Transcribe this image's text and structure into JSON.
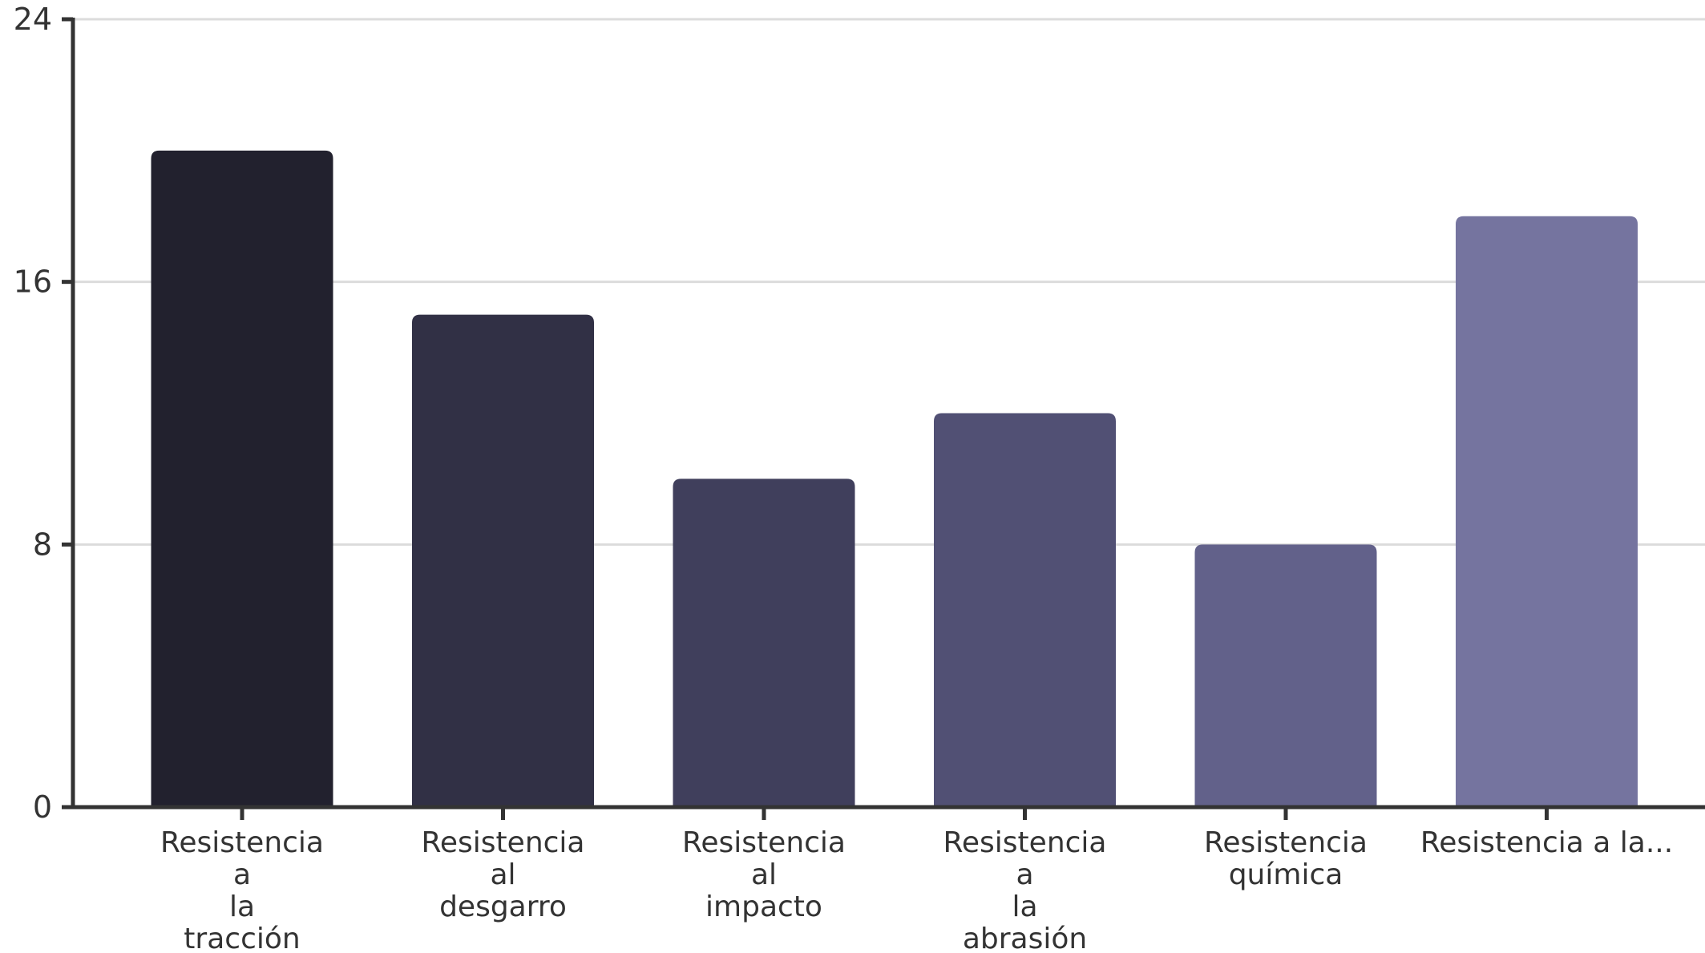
{
  "chart_data": {
    "type": "bar",
    "categories": [
      "Resistencia a la tracción",
      "Resistencia al desgarro",
      "Resistencia al impacto",
      "Resistencia a la abrasión",
      "Resistencia química",
      "Resistencia a la..."
    ],
    "category_label_lines": [
      [
        "Resistencia",
        "a",
        "la",
        "tracción"
      ],
      [
        "Resistencia",
        "al",
        "desgarro"
      ],
      [
        "Resistencia",
        "al",
        "impacto"
      ],
      [
        "Resistencia",
        "a",
        "la",
        "abrasión"
      ],
      [
        "Resistencia",
        "química"
      ],
      [
        "Resistencia a la..."
      ]
    ],
    "values": [
      20,
      15,
      10,
      12,
      8,
      18
    ],
    "colors": [
      "#22212e",
      "#313045",
      "#403f5c",
      "#515074",
      "#62618a",
      "#75749f"
    ],
    "ylim": [
      0,
      24
    ],
    "yticks": [
      0,
      8,
      16,
      24
    ],
    "grid": true,
    "title": "",
    "xlabel": "",
    "ylabel": ""
  }
}
